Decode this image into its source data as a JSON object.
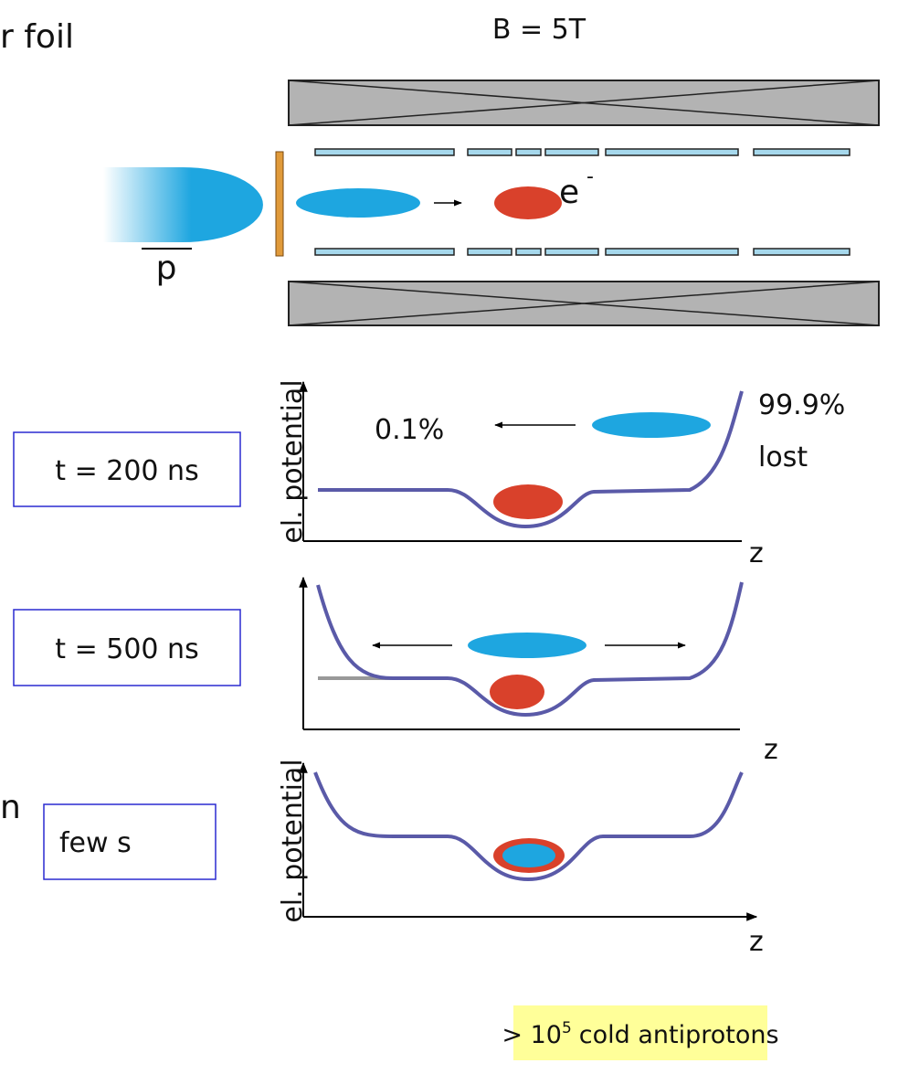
{
  "header": {
    "foil_label": "r foil",
    "field_label": "B = 5T"
  },
  "trap": {
    "antiproton_label": "p",
    "electron_label": "e",
    "electron_charge": "-"
  },
  "panels": [
    {
      "time": "t = 200 ns",
      "y_label": "el. potential",
      "x_label": "z",
      "fraction_escaped": "0.1%",
      "fraction_lost": "99.9%",
      "lost_word": "lost"
    },
    {
      "time": "t = 500 ns",
      "x_label": "z"
    },
    {
      "time": "few s",
      "y_label": "el. potential",
      "x_label": "z",
      "side_label": "n"
    }
  ],
  "footer": {
    "prefix": "> 10",
    "exponent": "5",
    "suffix": "cold antiprotons"
  }
}
